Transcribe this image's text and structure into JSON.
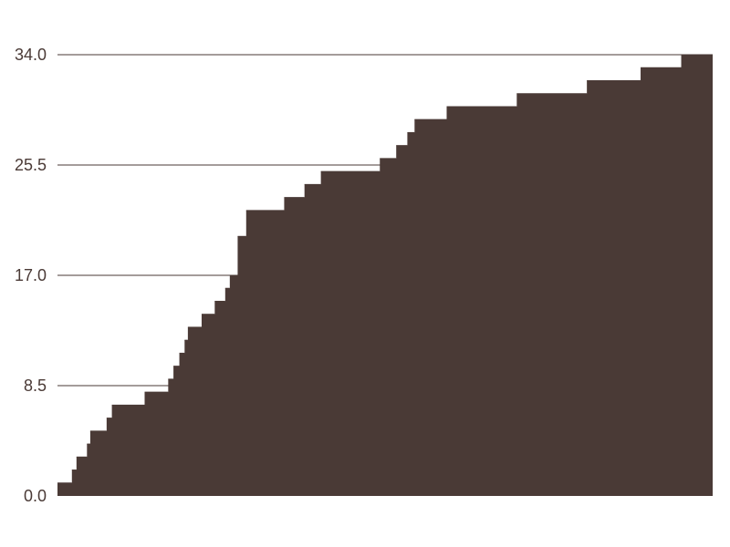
{
  "chart_data": {
    "type": "area",
    "step": true,
    "title": "",
    "xlabel": "",
    "ylabel": "",
    "grid": true,
    "legend": "none",
    "xlim": [
      0,
      100
    ],
    "ylim": [
      0,
      34
    ],
    "yticks": [
      0.0,
      8.5,
      17.0,
      25.5,
      34.0
    ],
    "ytick_labels": [
      "0.0",
      "8.5",
      "17.0",
      "25.5",
      "34.0"
    ],
    "colors": {
      "fill": "#4a3a36",
      "grid": "#4a3a36",
      "tick_text": "#4a3a36"
    },
    "series": [
      {
        "x": [
          0,
          2.2,
          2.9,
          4.5,
          5.0,
          7.5,
          8.3,
          13.3,
          16.9,
          17.7,
          18.6,
          19.4,
          19.9,
          22.0,
          24.0,
          25.6,
          26.3,
          27.5,
          28.8,
          34.6,
          37.7,
          40.2,
          49.2,
          51.7,
          53.4,
          54.5,
          59.4,
          70.1,
          80.8,
          89.0,
          95.2
        ],
        "values": [
          1.0,
          2.0,
          3.0,
          4.0,
          5.0,
          6.0,
          7.0,
          8.0,
          9.0,
          10.0,
          11.0,
          12.0,
          13.0,
          14.0,
          15.0,
          16.0,
          17.0,
          20.0,
          22.0,
          23.0,
          24.0,
          25.0,
          26.0,
          27.0,
          28.0,
          29.0,
          30.0,
          31.0,
          32.0,
          33.0,
          34.0
        ]
      }
    ]
  }
}
